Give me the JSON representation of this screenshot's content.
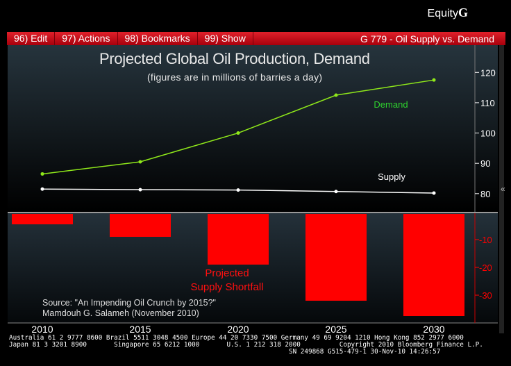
{
  "brand": {
    "text": "Equity",
    "letter": "G"
  },
  "menu": {
    "items": [
      "96) Edit",
      "97) Actions",
      "98) Bookmarks",
      "99) Show"
    ],
    "title": "G 779 - Oil Supply vs. Demand"
  },
  "chart_data": [
    {
      "type": "line",
      "title": "Projected Global Oil Production, Demand",
      "subtitle": "(figures are in millions of barries a day)",
      "x": [
        2010,
        2015,
        2020,
        2025,
        2030
      ],
      "series": [
        {
          "name": "Demand",
          "color": "#8fe81a",
          "values": [
            86.5,
            90.5,
            100,
            112.5,
            117.5
          ]
        },
        {
          "name": "Supply",
          "color": "#ffffff",
          "values": [
            81.5,
            81.3,
            81.2,
            80.7,
            80.2
          ]
        }
      ],
      "yticks": [
        80,
        90,
        100,
        110,
        120
      ],
      "ylim": [
        74,
        129
      ],
      "yaxis": "right"
    },
    {
      "type": "bar",
      "categories": [
        "2010",
        "2015",
        "2020",
        "2025",
        "2030"
      ],
      "values": [
        -4.5,
        -9,
        -19,
        -32,
        -37.5
      ],
      "color": "#ff0000",
      "annotation": [
        "Projected",
        "Supply Shortfall"
      ],
      "yticks": [
        -10,
        -20,
        -30
      ],
      "ylim": [
        -40,
        0
      ],
      "yaxis": "right"
    }
  ],
  "source": [
    "Source: \"An Impending Oil Crunch by 2015?\"",
    "Mamdouh G. Salameh (November 2010)"
  ],
  "footer": [
    "Australia 61 2 9777 8600 Brazil 5511 3048 4500 Europe 44 20 7330 7500 Germany 49 69 9204 1210 Hong Kong 852 2977 6000",
    "Japan 81 3 3201 8900       Singapore 65 6212 1000       U.S. 1 212 318 2000          Copyright 2010 Bloomberg Finance L.P.",
    "                                                                        SN 249868 G515-479-1 30-Nov-10 14:26:57"
  ]
}
